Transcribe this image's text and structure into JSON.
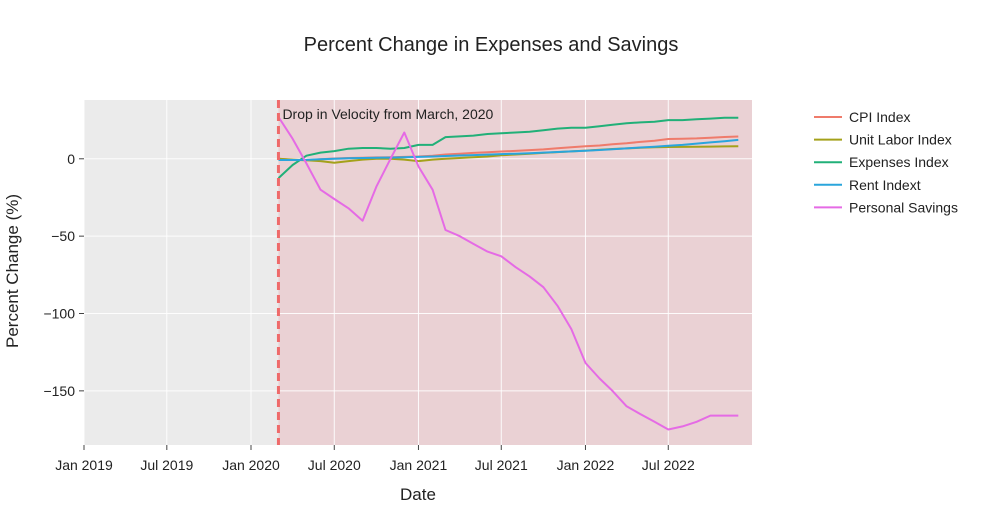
{
  "chart_data": {
    "type": "line",
    "title": "Percent Change in Expenses and Savings",
    "xlabel": "Date",
    "ylabel": "Percent Change (%)",
    "xlim": [
      "2019-01-01",
      "2022-12-31"
    ],
    "ylim": [
      -185,
      38
    ],
    "x_ticks": [
      {
        "date": "2019-01-01",
        "label": "Jan 2019"
      },
      {
        "date": "2019-07-01",
        "label": "Jul 2019"
      },
      {
        "date": "2020-01-01",
        "label": "Jan 2020"
      },
      {
        "date": "2020-07-01",
        "label": "Jul 2020"
      },
      {
        "date": "2021-01-01",
        "label": "Jan 2021"
      },
      {
        "date": "2021-07-01",
        "label": "Jul 2021"
      },
      {
        "date": "2022-01-01",
        "label": "Jan 2022"
      },
      {
        "date": "2022-07-01",
        "label": "Jul 2022"
      }
    ],
    "y_ticks": [
      {
        "value": 0,
        "label": "0"
      },
      {
        "value": -50,
        "label": "−50"
      },
      {
        "value": -100,
        "label": "−100"
      },
      {
        "value": -150,
        "label": "−150"
      }
    ],
    "grid": true,
    "legend_position": "right",
    "shaded_region": {
      "start": "2020-03-01",
      "end": "2022-12-31",
      "color": "#e8a0a8"
    },
    "vertical_line": {
      "date": "2020-03-01",
      "color": "#ef6a6a",
      "style": "dashed"
    },
    "annotation": {
      "text": "Drop in Velocity from March, 2020",
      "date": "2020-03-01",
      "value": 36
    },
    "x": [
      "2020-03-01",
      "2020-04-01",
      "2020-05-01",
      "2020-06-01",
      "2020-07-01",
      "2020-08-01",
      "2020-09-01",
      "2020-10-01",
      "2020-11-01",
      "2020-12-01",
      "2021-01-01",
      "2021-02-01",
      "2021-03-01",
      "2021-04-01",
      "2021-05-01",
      "2021-06-01",
      "2021-07-01",
      "2021-08-01",
      "2021-09-01",
      "2021-10-01",
      "2021-11-01",
      "2021-12-01",
      "2022-01-01",
      "2022-02-01",
      "2022-03-01",
      "2022-04-01",
      "2022-05-01",
      "2022-06-01",
      "2022-07-01",
      "2022-08-01",
      "2022-09-01",
      "2022-10-01",
      "2022-11-01",
      "2022-12-01"
    ],
    "series": [
      {
        "name": "CPI Index",
        "color": "#ef7b6b",
        "values": [
          0,
          -0.7,
          -1,
          -0.3,
          0.2,
          0.5,
          0.7,
          0.9,
          1,
          1.2,
          1.5,
          2,
          2.8,
          3.3,
          3.8,
          4.2,
          4.7,
          5.1,
          5.6,
          6.1,
          6.8,
          7.4,
          8.1,
          8.6,
          9.4,
          10.1,
          10.9,
          11.7,
          12.8,
          13,
          13.2,
          13.6,
          14.1,
          14.4
        ]
      },
      {
        "name": "Unit Labor Index",
        "color": "#a4a11a",
        "values": [
          0,
          -0.5,
          -1,
          -1.5,
          -2.5,
          -1.5,
          -0.5,
          0,
          0,
          -0.5,
          -1.5,
          -0.5,
          0,
          0.5,
          1,
          1.5,
          2.3,
          2.8,
          3.3,
          3.8,
          4.3,
          4.8,
          5.3,
          5.8,
          6.3,
          6.7,
          7.1,
          7.4,
          7.6,
          7.7,
          7.8,
          7.9,
          8,
          8.1
        ]
      },
      {
        "name": "Expenses Index",
        "color": "#21b078",
        "values": [
          -12.5,
          -4,
          2,
          4,
          5,
          6.5,
          7,
          7,
          6.5,
          7,
          9,
          9,
          14,
          14.5,
          15,
          16,
          16.5,
          17,
          17.5,
          18.5,
          19.5,
          20,
          20,
          21,
          22,
          23,
          23.5,
          24,
          25,
          25,
          25.5,
          26,
          26.5,
          26.5
        ]
      },
      {
        "name": "Rent Indext",
        "color": "#2aa5dc",
        "values": [
          -0.8,
          -0.8,
          -0.7,
          -0.3,
          0,
          0.3,
          0.5,
          0.7,
          0.8,
          1,
          1.2,
          1.5,
          1.8,
          2.1,
          2.4,
          2.7,
          3,
          3.3,
          3.6,
          4,
          4.4,
          4.8,
          5.2,
          5.7,
          6.2,
          6.7,
          7.3,
          7.8,
          8.4,
          9,
          9.8,
          10.6,
          11.4,
          12.2
        ]
      },
      {
        "name": "Personal Savings",
        "color": "#e56be5",
        "values": [
          27,
          13,
          -3,
          -20,
          -26,
          -32,
          -40,
          -18,
          0,
          17,
          -5,
          -20,
          -46,
          -50,
          -55,
          -60,
          -63,
          -70,
          -76,
          -83,
          -95,
          -110,
          -132,
          -142,
          -150,
          -160,
          -165,
          -170,
          -175,
          -173,
          -170,
          -166,
          -166,
          -166
        ]
      }
    ]
  }
}
